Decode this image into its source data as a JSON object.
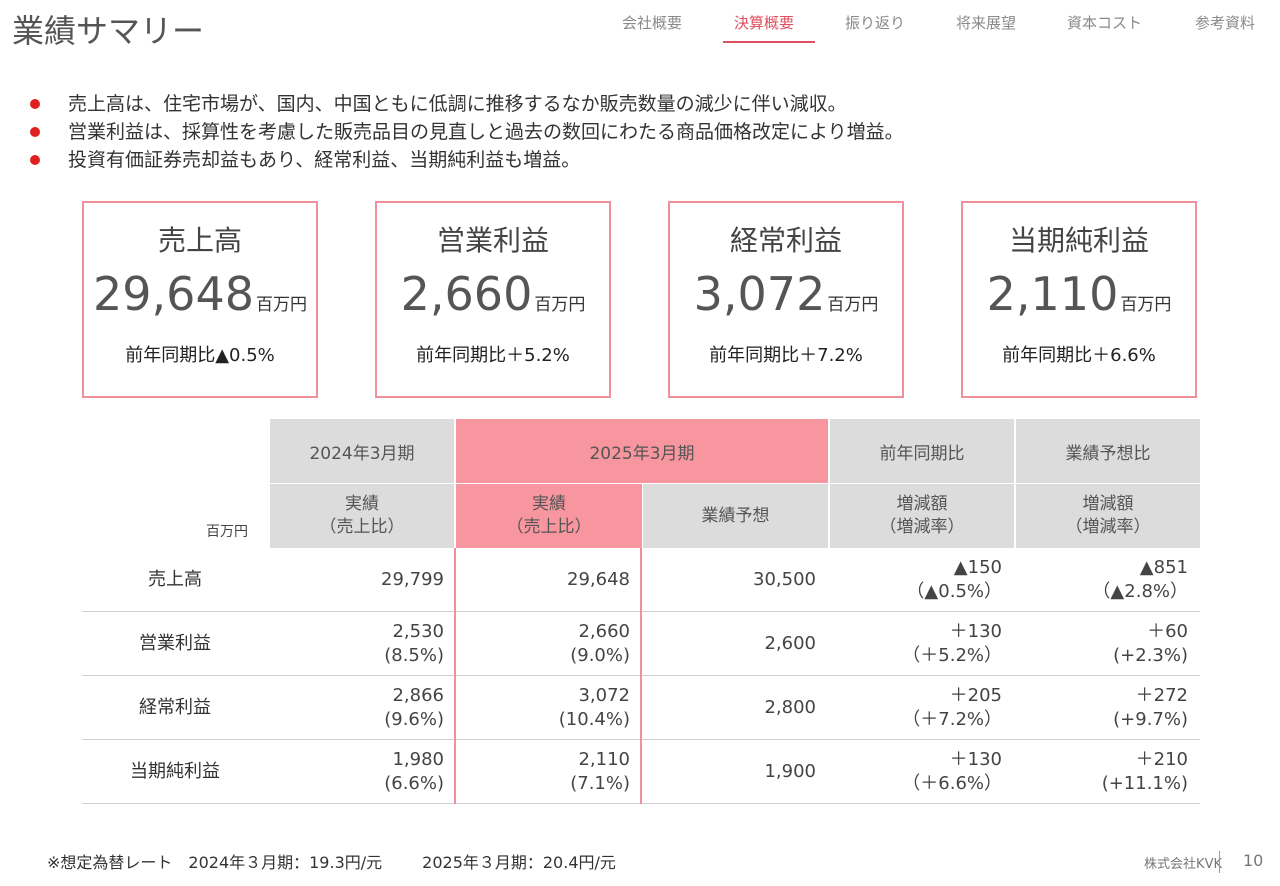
{
  "page": {
    "title": "業績サマリー",
    "company": "株式会社KVK",
    "page_number": "10"
  },
  "nav": {
    "items": [
      "会社概要",
      "決算概要",
      "振り返り",
      "将来展望",
      "資本コスト",
      "参考資料"
    ],
    "active": "決算概要",
    "accent_color": "#e05060"
  },
  "bullets": [
    "売上高は、住宅市場が、国内、中国ともに低調に推移するなか販売数量の減少に伴い減収。",
    "営業利益は、採算性を考慮した販売品目の見直しと過去の数回にわたる商品価格改定により増益。",
    "投資有価証券売却益もあり、経常利益、当期純利益も増益。"
  ],
  "kpis": [
    {
      "label": "売上高",
      "value": "29,648",
      "unit": "百万円",
      "compare": "前年同期比▲0.5%"
    },
    {
      "label": "営業利益",
      "value": "2,660",
      "unit": "百万円",
      "compare": "前年同期比＋5.2%"
    },
    {
      "label": "経常利益",
      "value": "3,072",
      "unit": "百万円",
      "compare": "前年同期比＋7.2%"
    },
    {
      "label": "当期純利益",
      "value": "2,110",
      "unit": "百万円",
      "compare": "前年同期比＋6.6%"
    }
  ],
  "table": {
    "unit": "百万円",
    "header_top": [
      "2024年3月期",
      "2025年3月期",
      "前年同期比",
      "業績予想比"
    ],
    "header_sub": [
      {
        "line1": "実績",
        "line2": "（売上比）"
      },
      {
        "line1": "実績",
        "line2": "（売上比）"
      },
      {
        "line1": "業績予想",
        "line2": ""
      },
      {
        "line1": "増減額",
        "line2": "（増減率）"
      },
      {
        "line1": "増減額",
        "line2": "（増減率）"
      }
    ],
    "rows": [
      {
        "name": "売上高",
        "cells": [
          [
            "29,799",
            ""
          ],
          [
            "29,648",
            ""
          ],
          [
            "30,500",
            ""
          ],
          [
            "▲150",
            "（▲0.5%）"
          ],
          [
            "▲851",
            "（▲2.8%）"
          ]
        ]
      },
      {
        "name": "営業利益",
        "cells": [
          [
            "2,530",
            "(8.5%)"
          ],
          [
            "2,660",
            "(9.0%)"
          ],
          [
            "2,600",
            ""
          ],
          [
            "＋130",
            "（＋5.2%）"
          ],
          [
            "＋60",
            "(+2.3%)"
          ]
        ]
      },
      {
        "name": "経常利益",
        "cells": [
          [
            "2,866",
            "(9.6%)"
          ],
          [
            "3,072",
            "(10.4%)"
          ],
          [
            "2,800",
            ""
          ],
          [
            "＋205",
            "（＋7.2%）"
          ],
          [
            "＋272",
            "(+9.7%)"
          ]
        ]
      },
      {
        "name": "当期純利益",
        "cells": [
          [
            "1,980",
            "(6.6%)"
          ],
          [
            "2,110",
            "(7.1%)"
          ],
          [
            "1,900",
            ""
          ],
          [
            "＋130",
            "（＋6.6%）"
          ],
          [
            "＋210",
            "(+11.1%)"
          ]
        ]
      }
    ]
  },
  "footnote": [
    "※想定為替レート　2024年３月期：19.3円/元",
    "2025年３月期：20.4円/元"
  ],
  "colors": {
    "kpi_border": "#f0909a",
    "highlight": "#f7969f",
    "header_gray": "#dcdcdc",
    "bullet": "#e02020"
  }
}
